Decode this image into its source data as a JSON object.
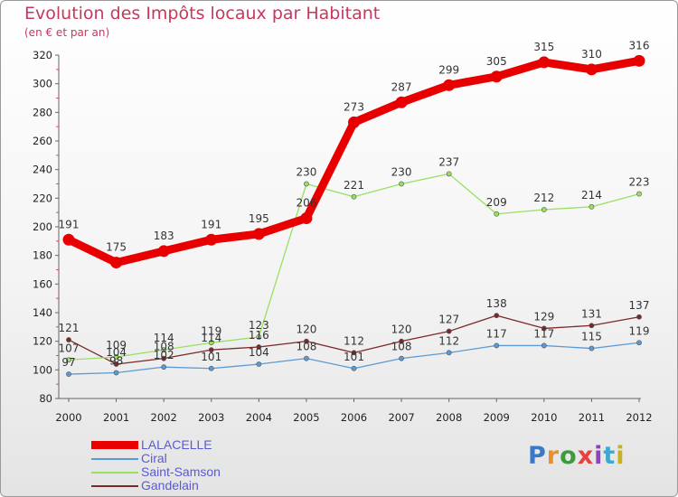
{
  "title": "Evolution des Impôts locaux par Habitant",
  "subtitle": "(en € et par an)",
  "logo": {
    "text": "Proxiti",
    "letter_colors": [
      "#3a78c8",
      "#e8902a",
      "#3a9c3a",
      "#e84040",
      "#9040c0",
      "#40a8d0",
      "#c8b020"
    ]
  },
  "chart_data": {
    "type": "line",
    "title": "Evolution des Impôts locaux par Habitant",
    "subtitle": "(en € et par an)",
    "xlabel": "",
    "ylabel": "",
    "x": [
      "2000",
      "2001",
      "2002",
      "2003",
      "2004",
      "2005",
      "2006",
      "2007",
      "2008",
      "2009",
      "2010",
      "2011",
      "2012"
    ],
    "ylim": [
      80,
      320
    ],
    "yticks": [
      80,
      100,
      120,
      140,
      160,
      180,
      200,
      220,
      240,
      260,
      280,
      300,
      320
    ],
    "grid": false,
    "legend_position": "bottom-left",
    "series": [
      {
        "name": "LALACELLE",
        "color": "#e80000",
        "values": [
          191,
          175,
          183,
          191,
          195,
          206,
          273,
          287,
          299,
          305,
          315,
          310,
          316
        ],
        "labels": [
          "191",
          "175",
          "183",
          "191",
          "195",
          "206",
          "273",
          "287",
          "299",
          "305",
          "315",
          "310",
          "316"
        ]
      },
      {
        "name": "Ciral",
        "color": "#5a9ad6",
        "values": [
          97,
          98,
          102,
          101,
          104,
          108,
          101,
          108,
          112,
          117,
          117,
          115,
          119
        ],
        "labels": [
          "97",
          "98",
          "102",
          "101",
          "104",
          "108",
          "101",
          "108",
          "112",
          "117",
          "117",
          "115",
          "119"
        ]
      },
      {
        "name": "Saint-Samson",
        "color": "#99e060",
        "values": [
          107,
          109,
          114,
          119,
          123,
          230,
          221,
          230,
          237,
          209,
          212,
          214,
          223
        ],
        "labels": [
          "107",
          "109",
          "114",
          "119",
          "123",
          "230",
          "221",
          "230",
          "237",
          "209",
          "212",
          "214",
          "223"
        ]
      },
      {
        "name": "Gandelain",
        "color": "#7a2a2a",
        "values": [
          121,
          104,
          108,
          114,
          116,
          120,
          112,
          120,
          127,
          138,
          129,
          131,
          137
        ],
        "labels": [
          "121",
          "104",
          "108",
          "114",
          "116",
          "120",
          "112",
          "120",
          "127",
          "138",
          "129",
          "131",
          "137"
        ]
      }
    ]
  }
}
